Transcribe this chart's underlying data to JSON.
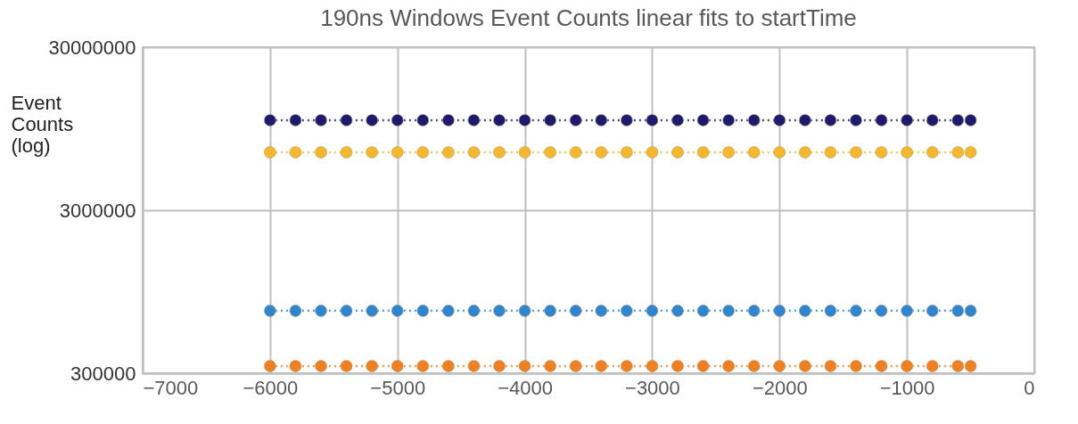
{
  "chart_data": {
    "type": "line",
    "title": "190ns Windows Event Counts linear fits to startTime",
    "ylabel": "Event Counts (log)",
    "x": [
      -6000,
      -5800,
      -5600,
      -5400,
      -5200,
      -5000,
      -4800,
      -4600,
      -4400,
      -4200,
      -4000,
      -3800,
      -3600,
      -3400,
      -3200,
      -3000,
      -2800,
      -2600,
      -2400,
      -2200,
      -2000,
      -1800,
      -1600,
      -1400,
      -1200,
      -1000,
      -800,
      -600,
      -500
    ],
    "series": [
      {
        "color": "#1f1a6e",
        "values": [
          10700000,
          10700000,
          10700000,
          10700000,
          10700000,
          10700000,
          10700000,
          10700000,
          10700000,
          10700000,
          10700000,
          10700000,
          10700000,
          10700000,
          10700000,
          10700000,
          10700000,
          10700000,
          10700000,
          10700000,
          10700000,
          10700000,
          10700000,
          10700000,
          10700000,
          10700000,
          10700000,
          10700000,
          10700000
        ]
      },
      {
        "color": "#f5b82a",
        "values": [
          6800000,
          6800000,
          6800000,
          6800000,
          6800000,
          6800000,
          6800000,
          6800000,
          6800000,
          6800000,
          6800000,
          6800000,
          6800000,
          6800000,
          6800000,
          6800000,
          6800000,
          6800000,
          6800000,
          6800000,
          6800000,
          6800000,
          6800000,
          6800000,
          6800000,
          6800000,
          6800000,
          6800000,
          6800000
        ]
      },
      {
        "color": "#2e86d0",
        "values": [
          725000,
          725000,
          725000,
          725000,
          725000,
          725000,
          725000,
          725000,
          725000,
          725000,
          725000,
          725000,
          725000,
          725000,
          725000,
          725000,
          725000,
          725000,
          725000,
          725000,
          725000,
          725000,
          725000,
          725000,
          725000,
          725000,
          725000,
          725000,
          725000
        ]
      },
      {
        "color": "#f07f1f",
        "values": [
          332000,
          332000,
          332000,
          332000,
          332000,
          332000,
          332000,
          332000,
          332000,
          332000,
          332000,
          332000,
          332000,
          332000,
          332000,
          332000,
          332000,
          332000,
          332000,
          332000,
          332000,
          332000,
          332000,
          332000,
          332000,
          332000,
          332000,
          332000,
          332000
        ]
      }
    ],
    "xlim": [
      -7000,
      0
    ],
    "xticks": [
      -7000,
      -6000,
      -5000,
      -4000,
      -3000,
      -2000,
      -1000,
      0
    ],
    "ylim": [
      300000,
      30000000
    ],
    "yticks": [
      300000,
      3000000,
      30000000
    ],
    "log": "y",
    "grid": true,
    "legend": false,
    "marker": "circle",
    "line_style": "dotted"
  }
}
